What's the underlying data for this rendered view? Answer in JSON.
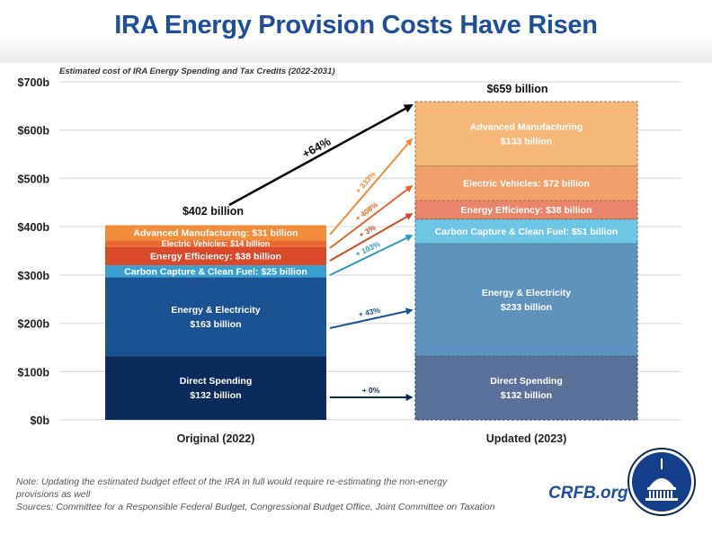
{
  "header": {
    "title": "IRA Energy Provision Costs Have Risen"
  },
  "chart_data": {
    "type": "bar",
    "stacked": true,
    "subtitle": "Estimated cost of IRA Energy Spending and Tax Credits (2022-2031)",
    "categories": [
      "Original (2022)",
      "Updated (2023)"
    ],
    "ylim": [
      0,
      700
    ],
    "yticks": [
      0,
      100,
      200,
      300,
      400,
      500,
      600,
      700
    ],
    "ytick_labels": [
      "$0b",
      "$100b",
      "$200b",
      "$300b",
      "$400b",
      "$500b",
      "$600b",
      "$700b"
    ],
    "grid": true,
    "totals": [
      {
        "value": 402,
        "label": "$402 billion"
      },
      {
        "value": 659,
        "label": "$659 billion"
      }
    ],
    "series": [
      {
        "name": "Direct Spending",
        "values": [
          132,
          132
        ],
        "colors": [
          "#0b2a5c",
          "#5b7199"
        ],
        "labels": [
          [
            "Direct Spending",
            "$132 billion"
          ],
          [
            "Direct Spending",
            "$132 billion"
          ]
        ],
        "change": "+ 0%",
        "arrow_color": "#0b2a5c"
      },
      {
        "name": "Energy & Electricity",
        "values": [
          163,
          233
        ],
        "colors": [
          "#1a5394",
          "#5f93bf"
        ],
        "labels": [
          [
            "Energy & Electricity",
            "$163 billion"
          ],
          [
            "Energy & Electricity",
            "$233 billion"
          ]
        ],
        "change": "+ 43%",
        "arrow_color": "#1a5394"
      },
      {
        "name": "Carbon Capture & Clean Fuel",
        "values": [
          25,
          51
        ],
        "colors": [
          "#3aa0d0",
          "#6ec6e6"
        ],
        "labels": [
          [
            "Carbon Capture & Clean Fuel: $25 billion"
          ],
          [
            "Carbon Capture & Clean Fuel: $51 billion"
          ]
        ],
        "change": "+ 103%",
        "arrow_color": "#2a9ac8"
      },
      {
        "name": "Energy Efficiency",
        "values": [
          38,
          38
        ],
        "colors": [
          "#d94a2b",
          "#e9866a"
        ],
        "labels": [
          [
            "Energy Efficiency: $38 billion"
          ],
          [
            "Energy Efficiency: $38 billion"
          ]
        ],
        "change": "+ 3%",
        "arrow_color": "#d2482a"
      },
      {
        "name": "Electric Vehicles",
        "values": [
          14,
          72
        ],
        "colors": [
          "#e86a2f",
          "#f2a06a"
        ],
        "labels": [
          [
            "Electric Vehicles: $14 billion"
          ],
          [
            "Electric Vehicles: $72 billion"
          ]
        ],
        "change": "+ 408%",
        "arrow_color": "#e4672b"
      },
      {
        "name": "Advanced Manufacturing",
        "values": [
          31,
          133
        ],
        "colors": [
          "#f08c3a",
          "#f6b878"
        ],
        "labels": [
          [
            "Advanced Manufacturing: $31 billion"
          ],
          [
            "Advanced Manufacturing",
            "$133 billion"
          ]
        ],
        "change": "+ 333%",
        "arrow_color": "#f08c3a"
      }
    ],
    "total_change": "+64%",
    "total_arrow_color": "#000000"
  },
  "footer": {
    "note_line1": "Note: Updating the estimated budget effect of the IRA in full would require re-estimating the non-energy",
    "note_line2": "provisions as well",
    "sources": "Sources: Committee for a Responsible Federal Budget, Congressional Budget Office, Joint Committee on Taxation",
    "brand": "CRFB.org"
  }
}
